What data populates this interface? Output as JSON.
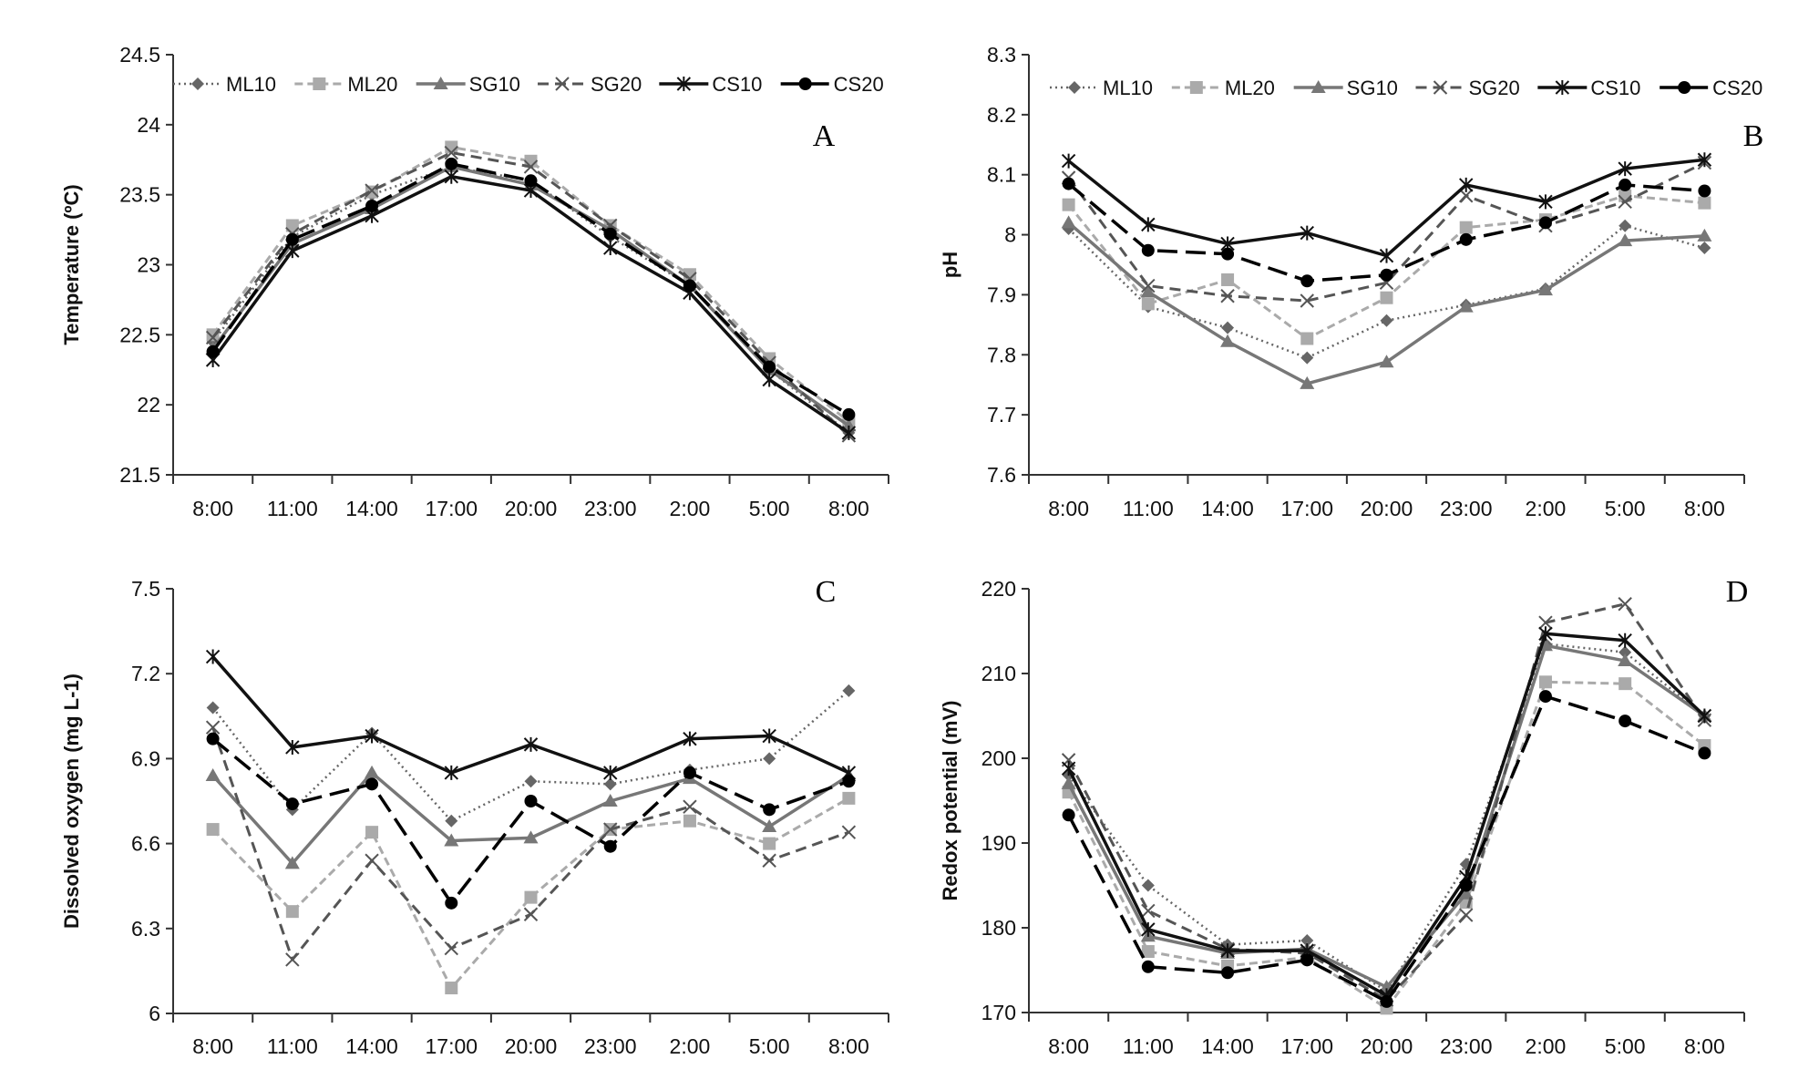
{
  "series_styles": [
    {
      "name": "ML10",
      "color": "#666666",
      "dash": "2,4",
      "width": 2.5,
      "marker": "diamond"
    },
    {
      "name": "ML20",
      "color": "#aaaaaa",
      "dash": "9,5",
      "width": 3,
      "marker": "square"
    },
    {
      "name": "SG10",
      "color": "#777777",
      "dash": "",
      "width": 3.5,
      "marker": "triangle"
    },
    {
      "name": "SG20",
      "color": "#555555",
      "dash": "12,7",
      "width": 3,
      "marker": "x"
    },
    {
      "name": "CS10",
      "color": "#111111",
      "dash": "",
      "width": 3.5,
      "marker": "asterisk"
    },
    {
      "name": "CS20",
      "color": "#000000",
      "dash": "22,9",
      "width": 3.5,
      "marker": "circle"
    }
  ],
  "chart_data": [
    {
      "type": "line",
      "panel_label": "A",
      "ylabel": "Temperature (ºC)",
      "xlabel": "",
      "categories": [
        "8:00",
        "11:00",
        "14:00",
        "17:00",
        "20:00",
        "23:00",
        "2:00",
        "5:00",
        "8:00"
      ],
      "ylim": [
        21.5,
        24.5
      ],
      "yticks": [
        "21.5",
        "22",
        "22.5",
        "23",
        "23.5",
        "24",
        "24.5"
      ],
      "legend": "top",
      "series": [
        {
          "name": "ML10",
          "values": [
            22.45,
            23.2,
            23.5,
            23.7,
            23.6,
            23.2,
            22.85,
            22.25,
            21.8
          ]
        },
        {
          "name": "ML20",
          "values": [
            22.5,
            23.28,
            23.52,
            23.84,
            23.74,
            23.28,
            22.93,
            22.33,
            21.88
          ]
        },
        {
          "name": "SG10",
          "values": [
            22.4,
            23.15,
            23.4,
            23.7,
            23.57,
            23.25,
            22.85,
            22.25,
            21.85
          ]
        },
        {
          "name": "SG20",
          "values": [
            22.48,
            23.22,
            23.53,
            23.8,
            23.7,
            23.28,
            22.9,
            22.3,
            21.78
          ]
        },
        {
          "name": "CS10",
          "values": [
            22.32,
            23.1,
            23.35,
            23.63,
            23.53,
            23.12,
            22.8,
            22.18,
            21.8
          ]
        },
        {
          "name": "CS20",
          "values": [
            22.38,
            23.18,
            23.42,
            23.72,
            23.6,
            23.22,
            22.85,
            22.27,
            21.93
          ]
        }
      ]
    },
    {
      "type": "line",
      "panel_label": "B",
      "ylabel": "pH",
      "xlabel": "",
      "categories": [
        "8:00",
        "11:00",
        "14:00",
        "17:00",
        "20:00",
        "23:00",
        "2:00",
        "5:00",
        "8:00"
      ],
      "ylim": [
        7.6,
        8.3
      ],
      "yticks": [
        "7.6",
        "7.7",
        "7.8",
        "7.9",
        "8",
        "8.1",
        "8.2",
        "8.3"
      ],
      "legend": "top",
      "series": [
        {
          "name": "ML10",
          "values": [
            8.01,
            7.88,
            7.845,
            7.795,
            7.857,
            7.883,
            7.91,
            8.015,
            7.978
          ]
        },
        {
          "name": "ML20",
          "values": [
            8.05,
            7.885,
            7.925,
            7.827,
            7.895,
            8.012,
            8.025,
            8.065,
            8.053
          ]
        },
        {
          "name": "SG10",
          "values": [
            8.02,
            7.905,
            7.822,
            7.752,
            7.788,
            7.88,
            7.908,
            7.99,
            7.998
          ]
        },
        {
          "name": "SG20",
          "values": [
            8.095,
            7.915,
            7.898,
            7.89,
            7.92,
            8.065,
            8.015,
            8.055,
            8.12
          ]
        },
        {
          "name": "CS10",
          "values": [
            8.123,
            8.017,
            7.985,
            8.003,
            7.965,
            8.083,
            8.055,
            8.11,
            8.125
          ]
        },
        {
          "name": "CS20",
          "values": [
            8.085,
            7.974,
            7.968,
            7.923,
            7.933,
            7.992,
            8.02,
            8.083,
            8.073
          ]
        }
      ]
    },
    {
      "type": "line",
      "panel_label": "C",
      "ylabel": "Dissolved oxygen (mg L-1)",
      "xlabel": "",
      "categories": [
        "8:00",
        "11:00",
        "14:00",
        "17:00",
        "20:00",
        "23:00",
        "2:00",
        "5:00",
        "8:00"
      ],
      "ylim": [
        6,
        7.5
      ],
      "yticks": [
        "6",
        "6.3",
        "6.6",
        "6.9",
        "7.2",
        "7.5"
      ],
      "legend": "none",
      "series": [
        {
          "name": "ML10",
          "values": [
            7.08,
            6.72,
            6.99,
            6.68,
            6.82,
            6.81,
            6.86,
            6.9,
            7.14
          ]
        },
        {
          "name": "ML20",
          "values": [
            6.65,
            6.36,
            6.64,
            6.09,
            6.41,
            6.65,
            6.68,
            6.6,
            6.76
          ]
        },
        {
          "name": "SG10",
          "values": [
            6.84,
            6.53,
            6.85,
            6.61,
            6.62,
            6.75,
            6.83,
            6.66,
            6.84
          ]
        },
        {
          "name": "SG20",
          "values": [
            7.01,
            6.19,
            6.54,
            6.23,
            6.35,
            6.65,
            6.73,
            6.54,
            6.64
          ]
        },
        {
          "name": "CS10",
          "values": [
            7.26,
            6.94,
            6.98,
            6.85,
            6.95,
            6.85,
            6.97,
            6.98,
            6.85
          ]
        },
        {
          "name": "CS20",
          "values": [
            6.97,
            6.74,
            6.81,
            6.39,
            6.75,
            6.59,
            6.85,
            6.72,
            6.82
          ]
        }
      ]
    },
    {
      "type": "line",
      "panel_label": "D",
      "ylabel": "Redox potential (mV)",
      "xlabel": "",
      "categories": [
        "8:00",
        "11:00",
        "14:00",
        "17:00",
        "20:00",
        "23:00",
        "2:00",
        "5:00",
        "8:00"
      ],
      "ylim": [
        170,
        220
      ],
      "yticks": [
        "170",
        "180",
        "190",
        "200",
        "210",
        "220"
      ],
      "legend": "none",
      "series": [
        {
          "name": "ML10",
          "values": [
            198,
            185,
            178,
            178.5,
            172.5,
            187.5,
            213.5,
            212.5,
            205
          ]
        },
        {
          "name": "ML20",
          "values": [
            196,
            177.2,
            175.5,
            176.5,
            170.5,
            183,
            209,
            208.8,
            201.5
          ]
        },
        {
          "name": "SG10",
          "values": [
            197,
            179,
            177,
            177.5,
            173,
            184,
            213.3,
            211.5,
            205
          ]
        },
        {
          "name": "SG20",
          "values": [
            199.8,
            182,
            177.5,
            177,
            171.5,
            181.5,
            216,
            218.2,
            204.5
          ]
        },
        {
          "name": "CS10",
          "values": [
            198.8,
            179.8,
            177.3,
            177.3,
            172,
            186,
            214.7,
            213.9,
            205
          ]
        },
        {
          "name": "CS20",
          "values": [
            193.3,
            175.4,
            174.7,
            176.2,
            171.3,
            185,
            207.3,
            204.4,
            200.6
          ]
        }
      ]
    }
  ]
}
